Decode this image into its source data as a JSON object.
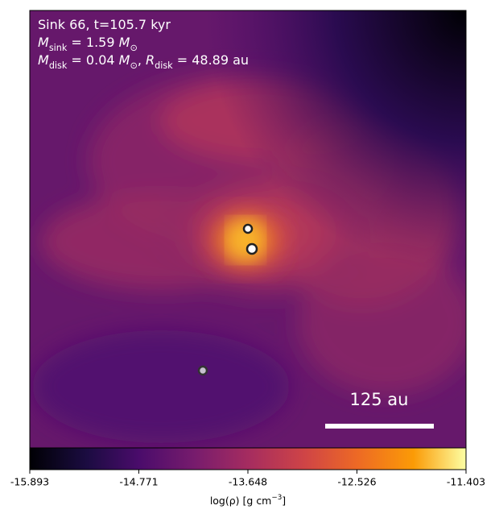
{
  "chart_data": {
    "type": "density-map",
    "annotations": [
      [
        {
          "t": "Sink 66, t=105.7 kyr"
        }
      ],
      [
        {
          "t": "M",
          "italic": true
        },
        {
          "t": "sink",
          "sub": true
        },
        {
          "t": " = 1.59 "
        },
        {
          "t": "M",
          "italic": true
        },
        {
          "t": "⊙",
          "sub": true
        }
      ],
      [
        {
          "t": "M",
          "italic": true
        },
        {
          "t": "disk",
          "sub": true
        },
        {
          "t": " = 0.04 "
        },
        {
          "t": "M",
          "italic": true
        },
        {
          "t": "⊙",
          "sub": true
        },
        {
          "t": ", "
        },
        {
          "t": "R",
          "italic": true
        },
        {
          "t": "disk",
          "sub": true
        },
        {
          "t": " = 48.89 au"
        }
      ]
    ],
    "scale_bar": "125 au",
    "colorbar": {
      "clim": [
        -15.893,
        -11.403
      ],
      "cticks": [
        -15.893,
        -14.771,
        -13.648,
        -12.526,
        -11.403
      ],
      "label": [
        {
          "t": "log(ρ) [g cm"
        },
        {
          "t": "−3",
          "sup": true
        },
        {
          "t": "]"
        }
      ]
    }
  }
}
